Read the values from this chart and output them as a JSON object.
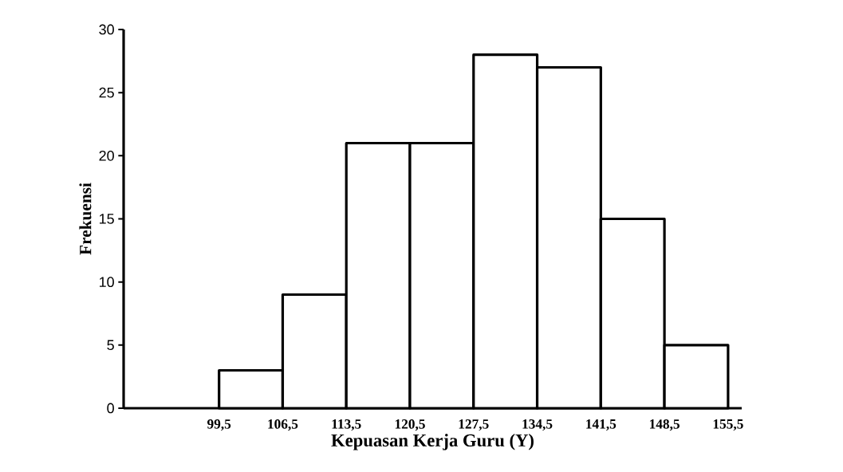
{
  "chart_data": {
    "type": "histogram",
    "xlabel": "Kepuasan Kerja Guru (Y)",
    "ylabel": "Frekuensi",
    "bins": [
      99.5,
      106.5,
      113.5,
      120.5,
      127.5,
      134.5,
      141.5,
      148.5,
      155.5
    ],
    "values": [
      3,
      9,
      21,
      21,
      28,
      27,
      15,
      5
    ],
    "color": "#ffffff",
    "xlim": [
      89,
      157
    ],
    "ylim": [
      0,
      30
    ],
    "xticks": [
      {
        "value": 99.5,
        "label": "99,5"
      },
      {
        "value": 106.5,
        "label": "106,5"
      },
      {
        "value": 113.5,
        "label": "113,5"
      },
      {
        "value": 120.5,
        "label": "120,5"
      },
      {
        "value": 127.5,
        "label": "127,5"
      },
      {
        "value": 134.5,
        "label": "134,5"
      },
      {
        "value": 141.5,
        "label": "141,5"
      },
      {
        "value": 148.5,
        "label": "148,5"
      },
      {
        "value": 155.5,
        "label": "155,5"
      }
    ],
    "yticks": [
      0,
      5,
      10,
      15,
      20,
      25,
      30
    ],
    "grid": false
  }
}
